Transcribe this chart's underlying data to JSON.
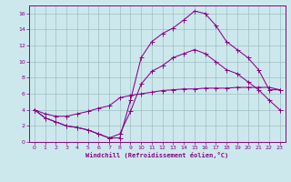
{
  "background_color": "#cde8ec",
  "grid_color": "#9bbfc4",
  "line_color": "#880088",
  "xlabel": "Windchill (Refroidissement éolien,°C)",
  "xlim": [
    -0.5,
    23.5
  ],
  "ylim": [
    0,
    17
  ],
  "xticks": [
    0,
    1,
    2,
    3,
    4,
    5,
    6,
    7,
    8,
    9,
    10,
    11,
    12,
    13,
    14,
    15,
    16,
    17,
    18,
    19,
    20,
    21,
    22,
    23
  ],
  "yticks": [
    0,
    2,
    4,
    6,
    8,
    10,
    12,
    14,
    16
  ],
  "line1_x": [
    0,
    1,
    2,
    3,
    4,
    5,
    6,
    7,
    8,
    9,
    10,
    11,
    12,
    13,
    14,
    15,
    16,
    17,
    18,
    19,
    20,
    21,
    22,
    23
  ],
  "line1_y": [
    4.0,
    3.0,
    2.5,
    2.0,
    1.8,
    1.5,
    1.0,
    0.5,
    0.5,
    5.2,
    10.5,
    12.5,
    13.5,
    14.2,
    15.2,
    16.3,
    16.0,
    14.5,
    12.5,
    11.5,
    10.5,
    9.0,
    6.5,
    6.5
  ],
  "line2_x": [
    0,
    1,
    2,
    3,
    4,
    5,
    6,
    7,
    8,
    9,
    10,
    11,
    12,
    13,
    14,
    15,
    16,
    17,
    18,
    19,
    20,
    21,
    22,
    23
  ],
  "line2_y": [
    4.0,
    3.0,
    2.5,
    2.0,
    1.8,
    1.5,
    1.0,
    0.5,
    1.0,
    3.8,
    7.2,
    8.8,
    9.5,
    10.5,
    11.0,
    11.5,
    11.0,
    10.0,
    9.0,
    8.5,
    7.5,
    6.5,
    5.2,
    4.0
  ],
  "line3_x": [
    0,
    1,
    2,
    3,
    4,
    5,
    6,
    7,
    8,
    9,
    10,
    11,
    12,
    13,
    14,
    15,
    16,
    17,
    18,
    19,
    20,
    21,
    22,
    23
  ],
  "line3_y": [
    4.0,
    3.5,
    3.2,
    3.2,
    3.5,
    3.8,
    4.2,
    4.5,
    5.5,
    5.8,
    6.0,
    6.2,
    6.4,
    6.5,
    6.6,
    6.6,
    6.7,
    6.7,
    6.7,
    6.8,
    6.8,
    6.8,
    6.8,
    6.5
  ]
}
